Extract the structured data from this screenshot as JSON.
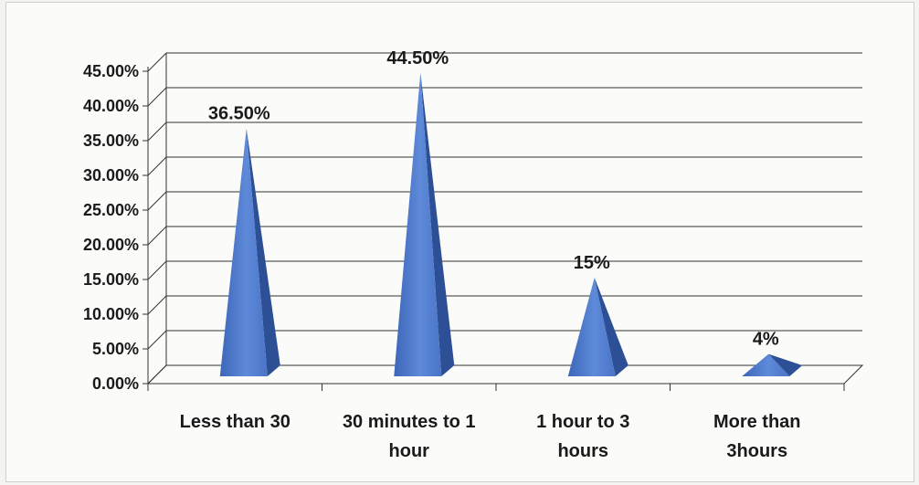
{
  "chart_data": {
    "type": "bar",
    "style": "3d-pyramid",
    "categories": [
      "Less than 30",
      "30 minutes to 1 hour",
      "1 hour to 3 hours",
      "More than 3hours"
    ],
    "category_lines": [
      [
        "Less than 30"
      ],
      [
        "30 minutes to 1",
        "hour"
      ],
      [
        "1 hour to 3",
        "hours"
      ],
      [
        "More than",
        "3hours"
      ]
    ],
    "values": [
      36.5,
      44.5,
      15,
      4
    ],
    "data_labels": [
      "36.50%",
      "44.50%",
      "15%",
      "4%"
    ],
    "title": "",
    "xlabel": "",
    "ylabel": "",
    "ylim": [
      0,
      45
    ],
    "yticks": [
      0,
      5,
      10,
      15,
      20,
      25,
      30,
      35,
      40,
      45
    ],
    "ytick_labels": [
      "0.00%",
      "5.00%",
      "10.00%",
      "15.00%",
      "20.00%",
      "25.00%",
      "30.00%",
      "35.00%",
      "40.00%",
      "45.00%"
    ],
    "grid": true,
    "legend": "none",
    "bar_color": "#4f7bd0",
    "bar_shadow_color": "#2c4f95",
    "grid_color": "#333333"
  }
}
